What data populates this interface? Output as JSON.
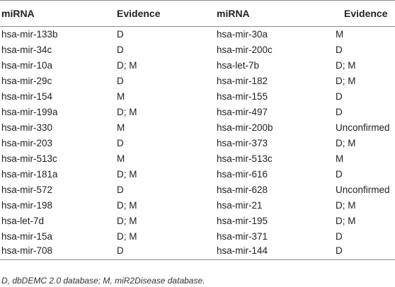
{
  "table": {
    "headers": [
      "miRNA",
      "Evidence",
      "miRNA",
      "Evidence"
    ],
    "rows": [
      [
        "hsa-mir-133b",
        "D",
        "hsa-mir-30a",
        "M"
      ],
      [
        "hsa-mir-34c",
        "D",
        "hsa-mir-200c",
        "D"
      ],
      [
        "hsa-mir-10a",
        "D; M",
        "hsa-let-7b",
        "D; M"
      ],
      [
        "hsa-mir-29c",
        "D",
        "hsa-mir-182",
        "D; M"
      ],
      [
        "hsa-mir-154",
        "M",
        "hsa-mir-155",
        "D"
      ],
      [
        "hsa-mir-199a",
        "D; M",
        "hsa-mir-497",
        "D"
      ],
      [
        "hsa-mir-330",
        "M",
        "hsa-mir-200b",
        "Unconfirmed"
      ],
      [
        "hsa-mir-203",
        "D",
        "hsa-mir-373",
        "D; M"
      ],
      [
        "hsa-mir-513c",
        "M",
        "hsa-mir-513c",
        "M"
      ],
      [
        "hsa-mir-181a",
        "D; M",
        "hsa-mir-616",
        "D"
      ],
      [
        "hsa-mir-572",
        "D",
        "hsa-mir-628",
        "Unconfirmed"
      ],
      [
        "hsa-mir-198",
        "D; M",
        "hsa-mir-21",
        "D; M"
      ],
      [
        "hsa-let-7d",
        "D; M",
        "hsa-mir-195",
        "D; M"
      ],
      [
        "hsa-mir-15a",
        "D; M",
        "hsa-mir-371",
        "D"
      ],
      [
        "hsa-mir-708",
        "D",
        "hsa-mir-144",
        "D"
      ]
    ]
  },
  "footnote": "D, dbDEMC 2.0 database; M, miR2Disease database."
}
